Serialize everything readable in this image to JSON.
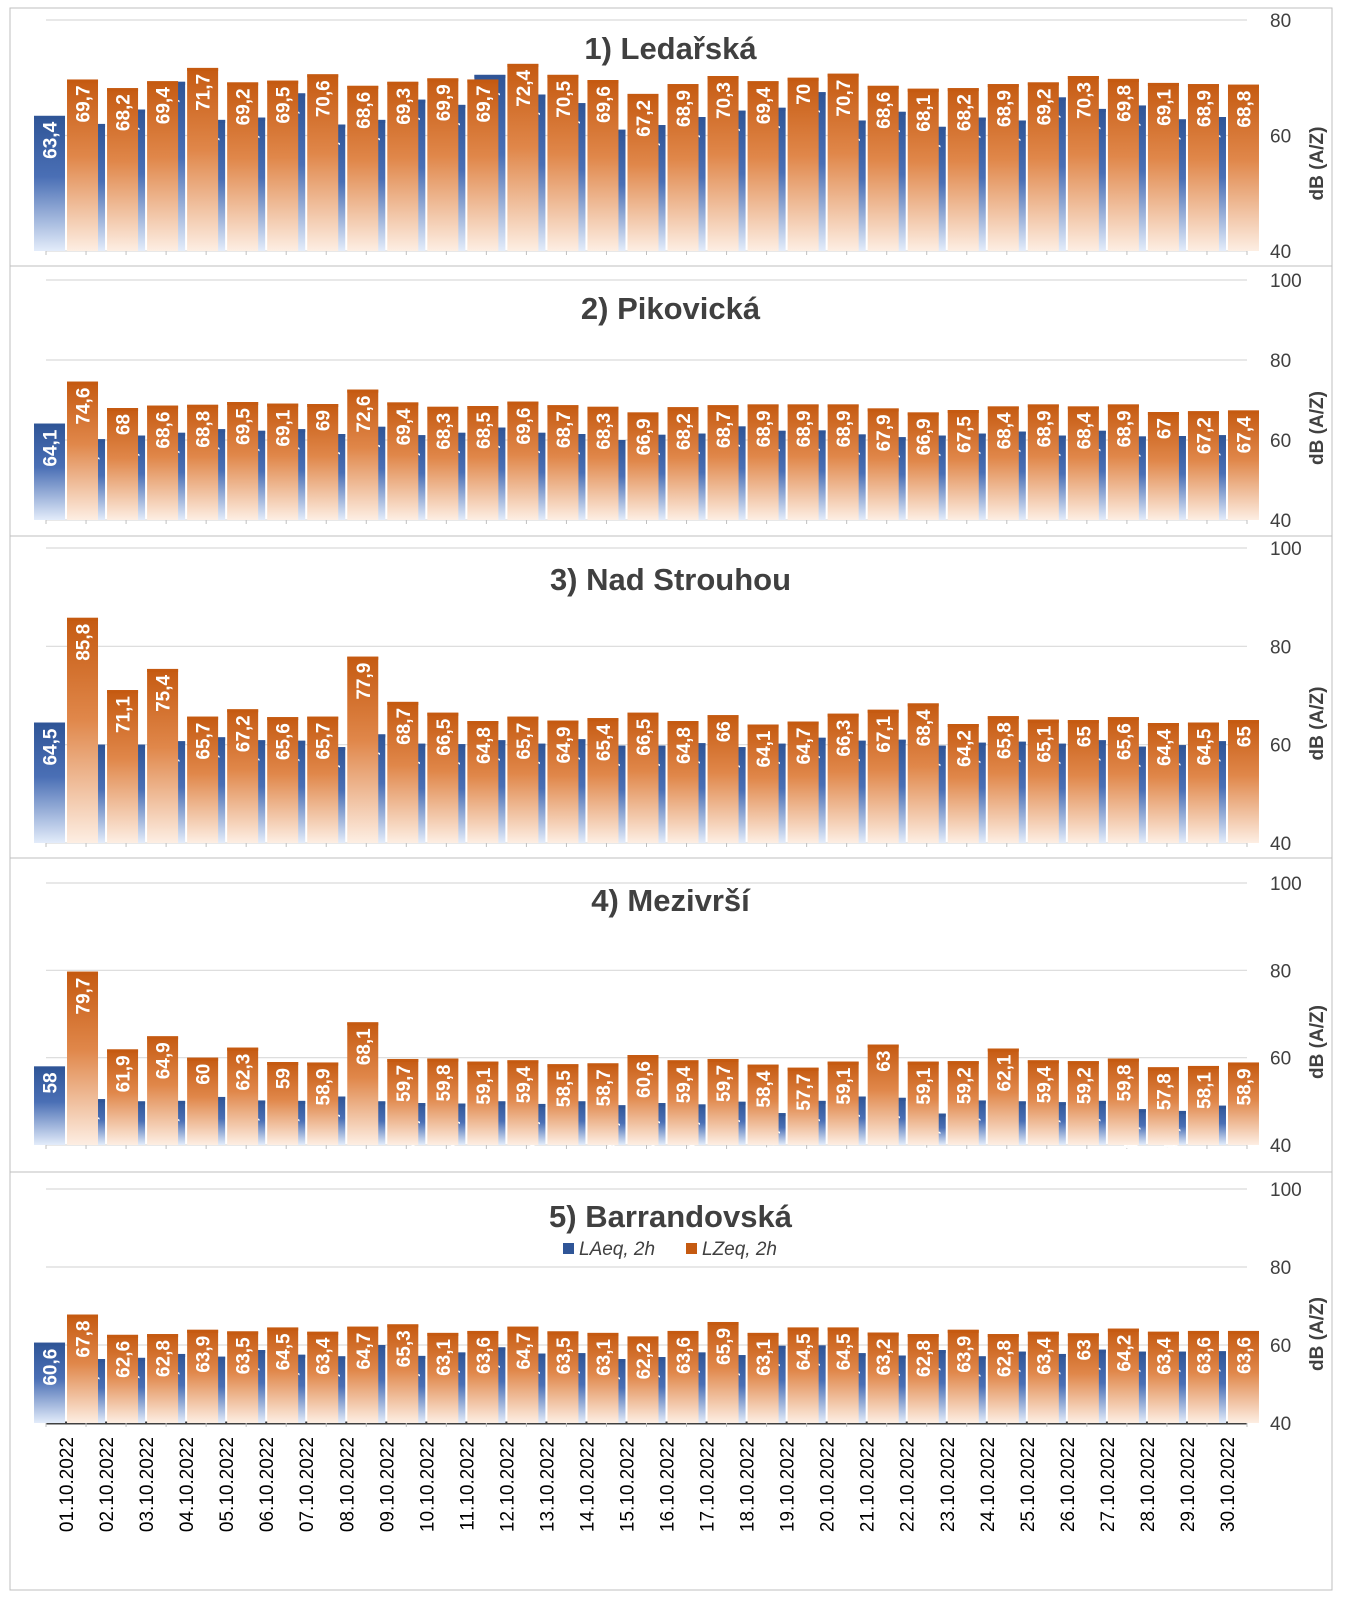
{
  "chart_data": {
    "type": "bar",
    "categories": [
      "01.10.2022",
      "02.10.2022",
      "03.10.2022",
      "04.10.2022",
      "05.10.2022",
      "06.10.2022",
      "07.10.2022",
      "08.10.2022",
      "09.10.2022",
      "10.10.2022",
      "11.10.2022",
      "12.10.2022",
      "13.10.2022",
      "14.10.2022",
      "15.10.2022",
      "16.10.2022",
      "17.10.2022",
      "18.10.2022",
      "19.10.2022",
      "20.10.2022",
      "21.10.2022",
      "22.10.2022",
      "23.10.2022",
      "24.10.2022",
      "25.10.2022",
      "26.10.2022",
      "27.10.2022",
      "28.10.2022",
      "29.10.2022",
      "30.10.2022"
    ],
    "ylabel": "dB (A/Z)",
    "legend": [
      "LAeq, 2h",
      "LZeq, 2h"
    ],
    "colors": {
      "LAeq, 2h": "#2f5597",
      "LZeq, 2h": "#c55a11"
    },
    "panels": [
      {
        "title": "1) Ledařská",
        "ylim": [
          40,
          80
        ],
        "yticks": [
          40,
          60,
          80
        ],
        "series": [
          {
            "name": "LAeq, 2h",
            "labels": [
              "63,4",
              "62",
              "64,5",
              "69,3",
              "62,7",
              "63,1",
              "67,3",
              "61,9",
              "62,7",
              "66,2",
              "65,3",
              "70,5",
              "67,1",
              "65,6",
              "61",
              "61,8",
              "63,2",
              "64,3",
              "64,8",
              "67,5",
              "62,6",
              "64,1",
              "61,5",
              "63,1",
              "62,6",
              "66,6",
              "64,6",
              "65,2",
              "62,8",
              "63,2"
            ],
            "values": [
              63.4,
              62,
              64.5,
              69.3,
              62.7,
              63.1,
              67.3,
              61.9,
              62.7,
              66.2,
              65.3,
              70.5,
              67.1,
              65.6,
              61,
              61.8,
              63.2,
              64.3,
              64.8,
              67.5,
              62.6,
              64.1,
              61.5,
              63.1,
              62.6,
              66.6,
              64.6,
              65.2,
              62.8,
              63.2
            ]
          },
          {
            "name": "LZeq, 2h",
            "labels": [
              "69,7",
              "68,2",
              "69,4",
              "71,7",
              "69,2",
              "69,5",
              "70,6",
              "68,6",
              "69,3",
              "69,9",
              "69,7",
              "72,4",
              "70,5",
              "69,6",
              "67,2",
              "68,9",
              "70,3",
              "69,4",
              "70",
              "70,7",
              "68,6",
              "68,1",
              "68,2",
              "68,9",
              "69,2",
              "70,3",
              "69,8",
              "69,1",
              "68,9",
              "68,8"
            ],
            "values": [
              69.7,
              68.2,
              69.4,
              71.7,
              69.2,
              69.5,
              70.6,
              68.6,
              69.3,
              69.9,
              69.7,
              72.4,
              70.5,
              69.6,
              67.2,
              68.9,
              70.3,
              69.4,
              70,
              70.7,
              68.6,
              68.1,
              68.2,
              68.9,
              69.2,
              70.3,
              69.8,
              69.1,
              68.9,
              68.8
            ]
          }
        ]
      },
      {
        "title": "2) Pikovická",
        "ylim": [
          40,
          100
        ],
        "yticks": [
          40,
          60,
          80,
          100
        ],
        "series": [
          {
            "name": "LAeq, 2h",
            "labels": [
              "64,1",
              "60,2",
              "61,1",
              "61,8",
              "62,7",
              "62,3",
              "62,7",
              "61,5",
              "63,3",
              "61,2",
              "61,8",
              "63,1",
              "61,8",
              "61,5",
              "60",
              "61,3",
              "61,6",
              "63,4",
              "62,3",
              "62,4",
              "61,4",
              "60,7",
              "61,1",
              "61,6",
              "62,1",
              "61,1",
              "62,3",
              "60,9",
              "61",
              "61,2"
            ],
            "values": [
              64.1,
              60.2,
              61.1,
              61.8,
              62.7,
              62.3,
              62.7,
              61.5,
              63.3,
              61.2,
              61.8,
              63.1,
              61.8,
              61.5,
              60,
              61.3,
              61.6,
              63.4,
              62.3,
              62.4,
              61.4,
              60.7,
              61.1,
              61.6,
              62.1,
              61.1,
              62.3,
              60.9,
              61,
              61.2
            ]
          },
          {
            "name": "LZeq, 2h",
            "labels": [
              "74,6",
              "68",
              "68,6",
              "68,8",
              "69,5",
              "69,1",
              "69",
              "72,6",
              "69,4",
              "68,3",
              "68,5",
              "69,6",
              "68,7",
              "68,3",
              "66,9",
              "68,2",
              "68,7",
              "68,9",
              "68,9",
              "68,9",
              "67,9",
              "66,9",
              "67,5",
              "68,4",
              "68,9",
              "68,4",
              "68,9",
              "67",
              "67,2",
              "67,4"
            ],
            "values": [
              74.6,
              68,
              68.6,
              68.8,
              69.5,
              69.1,
              69,
              72.6,
              69.4,
              68.3,
              68.5,
              69.6,
              68.7,
              68.3,
              66.9,
              68.2,
              68.7,
              68.9,
              68.9,
              68.9,
              67.9,
              66.9,
              67.5,
              68.4,
              68.9,
              68.4,
              68.9,
              67,
              67.2,
              67.4
            ]
          }
        ]
      },
      {
        "title": "3) Nad Strouhou",
        "ylim": [
          40,
          100
        ],
        "yticks": [
          40,
          60,
          80,
          100
        ],
        "series": [
          {
            "name": "LAeq, 2h",
            "labels": [
              "64,5",
              "60",
              "60",
              "60,7",
              "61,5",
              "60,9",
              "60,8",
              "59,5",
              "62,1",
              "60,2",
              "60,1",
              "60,9",
              "60,2",
              "61,1",
              "59,8",
              "59,8",
              "60,3",
              "59,5",
              "60,2",
              "61,4",
              "60,8",
              "61",
              "59,8",
              "60,4",
              "60,6",
              "60,2",
              "60,9",
              "59,6",
              "59,9",
              "60,7"
            ],
            "values": [
              64.5,
              60,
              60,
              60.7,
              61.5,
              60.9,
              60.8,
              59.5,
              62.1,
              60.2,
              60.1,
              60.9,
              60.2,
              61.1,
              59.8,
              59.8,
              60.3,
              59.5,
              60.2,
              61.4,
              60.8,
              61,
              59.8,
              60.4,
              60.6,
              60.2,
              60.9,
              59.6,
              59.9,
              60.7
            ]
          },
          {
            "name": "LZeq, 2h",
            "labels": [
              "85,8",
              "71,1",
              "75,4",
              "65,7",
              "67,2",
              "65,6",
              "65,7",
              "77,9",
              "68,7",
              "66,5",
              "64,8",
              "65,7",
              "64,9",
              "65,4",
              "66,5",
              "64,8",
              "66",
              "64,1",
              "64,7",
              "66,3",
              "67,1",
              "68,4",
              "64,2",
              "65,8",
              "65,1",
              "65",
              "65,6",
              "64,4",
              "64,5",
              "65"
            ],
            "values": [
              85.8,
              71.1,
              75.4,
              65.7,
              67.2,
              65.6,
              65.7,
              77.9,
              68.7,
              66.5,
              64.8,
              65.7,
              64.9,
              65.4,
              66.5,
              64.8,
              66,
              64.1,
              64.7,
              66.3,
              67.1,
              68.4,
              64.2,
              65.8,
              65.1,
              65,
              65.6,
              64.4,
              64.5,
              65
            ]
          }
        ]
      },
      {
        "title": "4) Mezivrší",
        "ylim": [
          40,
          100
        ],
        "yticks": [
          40,
          60,
          80,
          100
        ],
        "series": [
          {
            "name": "LAeq, 2h",
            "labels": [
              "58",
              "50,5",
              "50",
              "50,1",
              "51",
              "50,2",
              "50,1",
              "51,1",
              "50",
              "49,6",
              "49,5",
              "50",
              "49,4",
              "50",
              "49,1",
              "49,6",
              "49,3",
              "49,9",
              "47,3",
              "50,1",
              "51,1",
              "50,8",
              "47,2",
              "50,2",
              "50",
              "49,8",
              "50,1",
              "48,2",
              "47,8",
              "49"
            ],
            "values": [
              58,
              50.5,
              50,
              50.1,
              51,
              50.2,
              50.1,
              51.1,
              50,
              49.6,
              49.5,
              50,
              49.4,
              50,
              49.1,
              49.6,
              49.3,
              49.9,
              47.3,
              50.1,
              51.1,
              50.8,
              47.2,
              50.2,
              50,
              49.8,
              50.1,
              48.2,
              47.8,
              49
            ]
          },
          {
            "name": "LZeq, 2h",
            "labels": [
              "79,7",
              "61,9",
              "64,9",
              "60",
              "62,3",
              "59",
              "58,9",
              "68,1",
              "59,7",
              "59,8",
              "59,1",
              "59,4",
              "58,5",
              "58,7",
              "60,6",
              "59,4",
              "59,7",
              "58,4",
              "57,7",
              "59,1",
              "63",
              "59,1",
              "59,2",
              "62,1",
              "59,4",
              "59,2",
              "59,8",
              "57,8",
              "58,1",
              "58,9"
            ],
            "values": [
              79.7,
              61.9,
              64.9,
              60,
              62.3,
              59,
              58.9,
              68.1,
              59.7,
              59.8,
              59.1,
              59.4,
              58.5,
              58.7,
              60.6,
              59.4,
              59.7,
              58.4,
              57.7,
              59.1,
              63,
              59.1,
              59.2,
              62.1,
              59.4,
              59.2,
              59.8,
              57.8,
              58.1,
              58.9
            ]
          }
        ]
      },
      {
        "title": "5) Barrandovská",
        "ylim": [
          40,
          100
        ],
        "yticks": [
          40,
          60,
          80,
          100
        ],
        "series": [
          {
            "name": "LAeq, 2h",
            "labels": [
              "60,6",
              "56,4",
              "56,7",
              "57,7",
              "57",
              "58,7",
              "57,5",
              "57,1",
              "60",
              "57,2",
              "58,1",
              "59,4",
              "57,8",
              "57,9",
              "56,4",
              "56,9",
              "58,1",
              "57,4",
              "59,8",
              "59,9",
              "57,9",
              "57,3",
              "58,7",
              "57,1",
              "58,3",
              "57,7",
              "58,8",
              "58,3",
              "58,3",
              "58,4"
            ],
            "values": [
              60.6,
              56.4,
              56.7,
              57.7,
              57,
              58.7,
              57.5,
              57.1,
              60,
              57.2,
              58.1,
              59.4,
              57.8,
              57.9,
              56.4,
              56.9,
              58.1,
              57.4,
              59.8,
              59.9,
              57.9,
              57.3,
              58.7,
              57.1,
              58.3,
              57.7,
              58.8,
              58.3,
              58.3,
              58.4
            ]
          },
          {
            "name": "LZeq, 2h",
            "labels": [
              "67,8",
              "62,6",
              "62,8",
              "63,9",
              "63,5",
              "64,5",
              "63,4",
              "64,7",
              "65,3",
              "63,1",
              "63,6",
              "64,7",
              "63,5",
              "63,1",
              "62,2",
              "63,6",
              "65,9",
              "63,1",
              "64,5",
              "64,5",
              "63,2",
              "62,8",
              "63,9",
              "62,8",
              "63,4",
              "63",
              "64,2",
              "63,4",
              "63,6",
              "63,6"
            ],
            "values": [
              67.8,
              62.6,
              62.8,
              63.9,
              63.5,
              64.5,
              63.4,
              64.7,
              65.3,
              63.1,
              63.6,
              64.7,
              63.5,
              63.1,
              62.2,
              63.6,
              65.9,
              63.1,
              64.5,
              64.5,
              63.2,
              62.8,
              63.9,
              62.8,
              63.4,
              63,
              64.2,
              63.4,
              63.6,
              63.6
            ]
          }
        ]
      }
    ]
  }
}
